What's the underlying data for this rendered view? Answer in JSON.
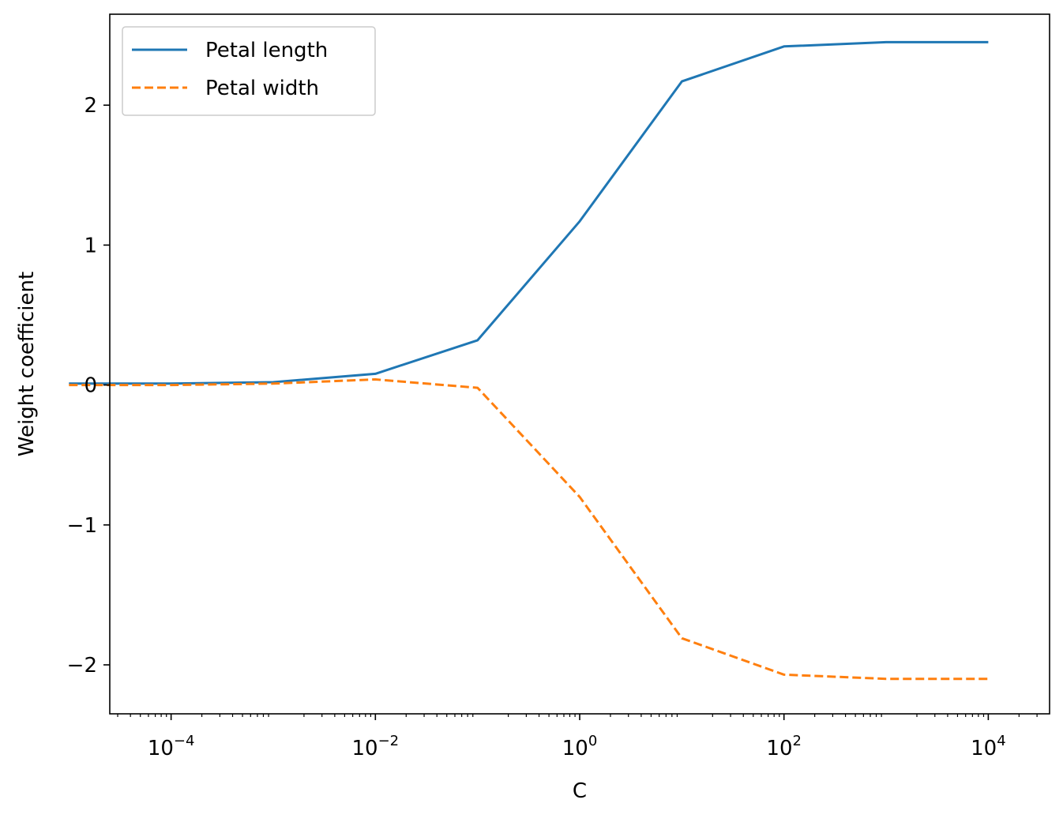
{
  "chart_data": {
    "type": "line",
    "xscale": "log",
    "xlabel": "C",
    "ylabel": "Weight coefficient",
    "xlim": [
      2.51e-05,
      39810
    ],
    "ylim": [
      -2.35,
      2.65
    ],
    "x_ticks": [
      {
        "value": 0.0001,
        "base": "10",
        "exp": "−4"
      },
      {
        "value": 0.01,
        "base": "10",
        "exp": "−2"
      },
      {
        "value": 1,
        "base": "10",
        "exp": "0"
      },
      {
        "value": 100,
        "base": "10",
        "exp": "2"
      },
      {
        "value": 10000,
        "base": "10",
        "exp": "4"
      }
    ],
    "y_ticks": [
      {
        "value": -2,
        "label": "−2"
      },
      {
        "value": -1,
        "label": "−1"
      },
      {
        "value": 0,
        "label": "0"
      },
      {
        "value": 1,
        "label": "1"
      },
      {
        "value": 2,
        "label": "2"
      }
    ],
    "x": [
      1e-05,
      0.0001,
      0.001,
      0.01,
      0.1,
      1,
      10,
      100,
      1000,
      10000
    ],
    "series": [
      {
        "name": "Petal length",
        "color": "#1f77b4",
        "linestyle": "solid",
        "values": [
          0.01,
          0.01,
          0.02,
          0.08,
          0.32,
          1.17,
          2.17,
          2.42,
          2.45,
          2.45
        ]
      },
      {
        "name": "Petal width",
        "color": "#ff7f0e",
        "linestyle": "dashed",
        "values": [
          0.0,
          0.0,
          0.01,
          0.04,
          -0.02,
          -0.8,
          -1.81,
          -2.07,
          -2.1,
          -2.1
        ]
      }
    ],
    "legend_position": "top-left",
    "grid": false
  }
}
